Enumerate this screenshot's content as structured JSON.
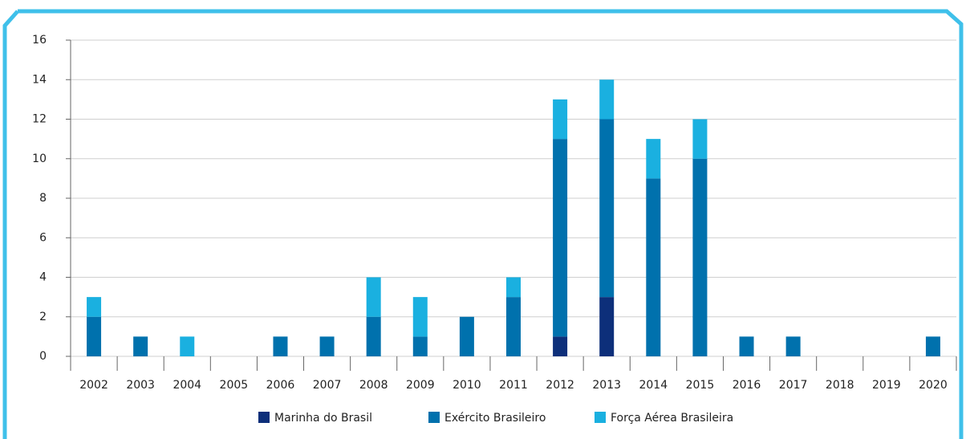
{
  "chart_data": {
    "type": "stacked_bar",
    "categories": [
      "2002",
      "2003",
      "2004",
      "2005",
      "2006",
      "2007",
      "2008",
      "2009",
      "2010",
      "2011",
      "2012",
      "2013",
      "2014",
      "2015",
      "2016",
      "2017",
      "2018",
      "2019",
      "2020"
    ],
    "series": [
      {
        "name": "Marinha do Brasil",
        "color": "#0d2f7a",
        "values": [
          0,
          0,
          0,
          0,
          0,
          0,
          0,
          0,
          0,
          0,
          1,
          3,
          0,
          0,
          0,
          0,
          0,
          0,
          0
        ]
      },
      {
        "name": "Exército Brasileiro",
        "color": "#0071ad",
        "values": [
          2,
          1,
          0,
          0,
          1,
          1,
          2,
          1,
          2,
          3,
          10,
          9,
          9,
          10,
          1,
          1,
          0,
          0,
          1
        ]
      },
      {
        "name": "Força Aérea Brasileira",
        "color": "#1ab0e0",
        "values": [
          1,
          0,
          1,
          0,
          0,
          0,
          2,
          2,
          0,
          1,
          2,
          2,
          2,
          2,
          0,
          0,
          0,
          0,
          0
        ]
      }
    ],
    "ylim": [
      0,
      16
    ],
    "yticks": [
      0,
      2,
      4,
      6,
      8,
      10,
      12,
      14,
      16
    ],
    "grid": true,
    "legend": "bottom"
  }
}
